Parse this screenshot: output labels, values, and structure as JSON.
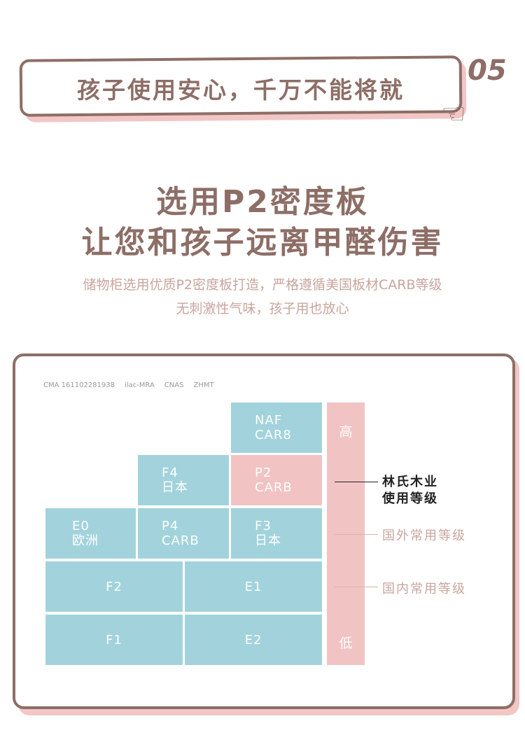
{
  "banner": {
    "title": "孩子使用安心，千万不能将就",
    "number": "05"
  },
  "headline": {
    "line1": "选用P2密度板",
    "line2": "让您和孩子远离甲醛伤害"
  },
  "description": {
    "line1": "储物柜选用优质P2密度板打造，严格遵循美国板材CARB等级",
    "line2": "无刺激性气味，孩子用也放心"
  },
  "certs": [
    "CMA 161102281938",
    "ilac-MRA",
    "CNAS",
    "ZHMT"
  ],
  "grades": {
    "naf": [
      "NAF",
      "CAR8"
    ],
    "f4": [
      "F4",
      "日本"
    ],
    "p2": [
      "P2",
      "CARB"
    ],
    "e0": [
      "E0",
      "欧洲"
    ],
    "p4": [
      "P4",
      "CARB"
    ],
    "f3": [
      "F3",
      "日本"
    ],
    "f2": "F2",
    "e1": "E1",
    "f1": "F1",
    "e2": "E2"
  },
  "scale": {
    "high": "高",
    "low": "低"
  },
  "legend": {
    "brand": [
      "林氏木业",
      "使用等级"
    ],
    "foreign": "国外常用等级",
    "domestic": "国内常用等级"
  },
  "colors": {
    "brown": "#8d6e66",
    "pink": "#f2c3c3",
    "teal": "#a2d3dc"
  }
}
